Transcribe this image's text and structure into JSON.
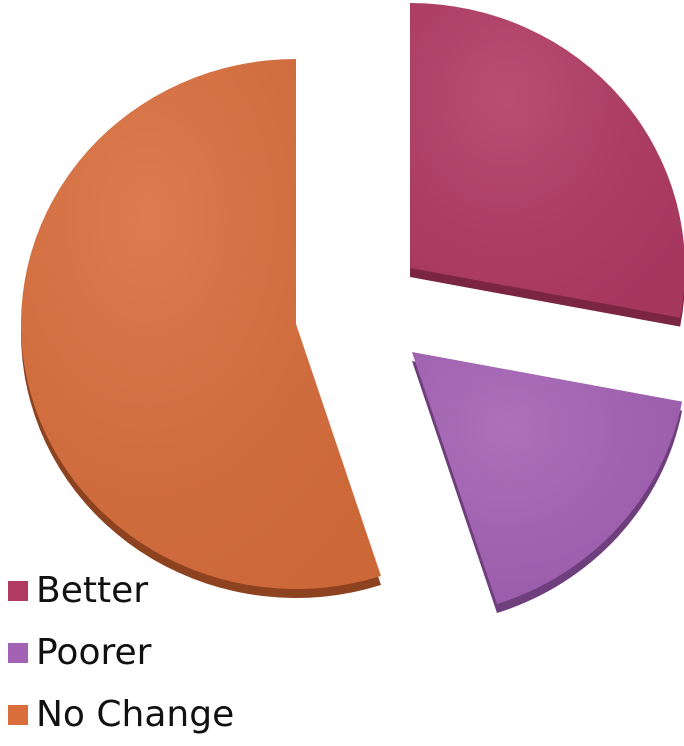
{
  "chart_data": {
    "type": "pie",
    "style": "3d-exploded",
    "title": "",
    "categories": [
      "Better",
      "Poorer",
      "No Change"
    ],
    "values": [
      28,
      17,
      55
    ],
    "colors": [
      "#B13A63",
      "#A462B5",
      "#D96E3C"
    ],
    "side_colors": [
      "#7A2541",
      "#6E3F7C",
      "#8E4320"
    ],
    "legend_position": "bottom-left"
  },
  "legend": {
    "items": [
      {
        "label": "Better",
        "color": "#B13A63"
      },
      {
        "label": "Poorer",
        "color": "#A462B5"
      },
      {
        "label": "No Change",
        "color": "#D96E3C"
      }
    ]
  }
}
